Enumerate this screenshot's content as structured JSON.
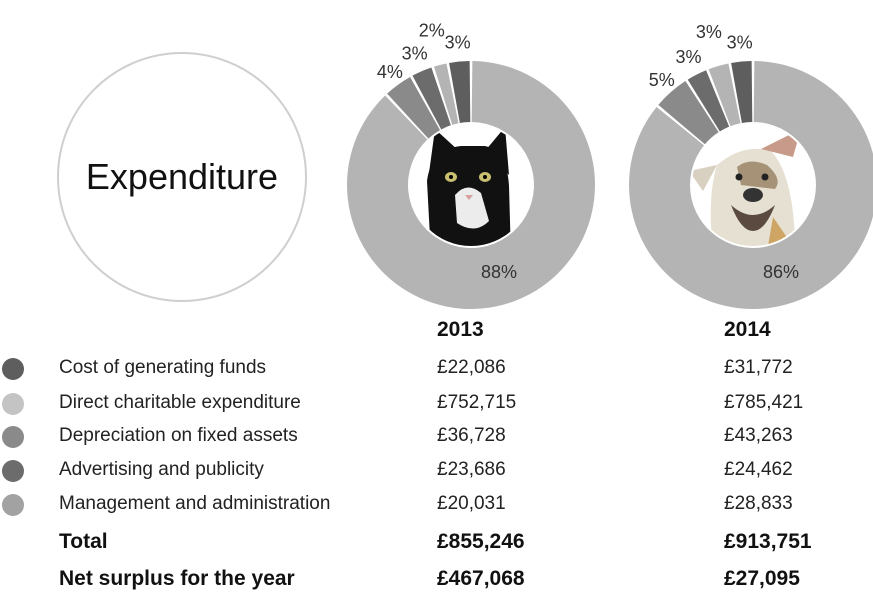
{
  "title": "Expenditure",
  "colors": {
    "cost_of_generating_funds": "#5e5e5e",
    "direct_charitable_expenditure": "#b4b4b4",
    "depreciation": "#8a8a8a",
    "advertising": "#6c6c6c",
    "management": "#9e9e9e"
  },
  "chart_data": [
    {
      "type": "pie",
      "year": "2013",
      "center_image": "cat-photo",
      "slices": [
        {
          "label": "88%",
          "value": 88,
          "color": "#b4b4b4"
        },
        {
          "label": "4%",
          "value": 4,
          "color": "#8a8a8a"
        },
        {
          "label": "3%",
          "value": 3,
          "color": "#6c6c6c"
        },
        {
          "label": "2%",
          "value": 2,
          "color": "#b4b4b4"
        },
        {
          "label": "3%",
          "value": 3,
          "color": "#5e5e5e"
        }
      ]
    },
    {
      "type": "pie",
      "year": "2014",
      "center_image": "dog-photo",
      "slices": [
        {
          "label": "86%",
          "value": 86,
          "color": "#b4b4b4"
        },
        {
          "label": "5%",
          "value": 5,
          "color": "#8a8a8a"
        },
        {
          "label": "3%",
          "value": 3,
          "color": "#6c6c6c"
        },
        {
          "label": "3%",
          "value": 3,
          "color": "#b4b4b4"
        },
        {
          "label": "3%",
          "value": 3,
          "color": "#5e5e5e"
        }
      ]
    }
  ],
  "table": {
    "headers": {
      "y2013": "2013",
      "y2014": "2014"
    },
    "rows": [
      {
        "color": "#5e5e5e",
        "label": "Cost of generating funds",
        "v2013": "£22,086",
        "v2014": "£31,772"
      },
      {
        "color": "#c4c4c4",
        "label": "Direct charitable expenditure",
        "v2013": "£752,715",
        "v2014": "£785,421"
      },
      {
        "color": "#8a8a8a",
        "label": "Depreciation on fixed assets",
        "v2013": "£36,728",
        "v2014": "£43,263"
      },
      {
        "color": "#6c6c6c",
        "label": "Advertising and publicity",
        "v2013": "£23,686",
        "v2014": "£24,462"
      },
      {
        "color": "#a2a2a2",
        "label": "Management and administration",
        "v2013": "£20,031",
        "v2014": "£28,833"
      }
    ],
    "total": {
      "label": "Total",
      "v2013": "£855,246",
      "v2014": "£913,751"
    },
    "net": {
      "label": "Net surplus for the year",
      "v2013": "£467,068",
      "v2014": "£27,095"
    }
  }
}
